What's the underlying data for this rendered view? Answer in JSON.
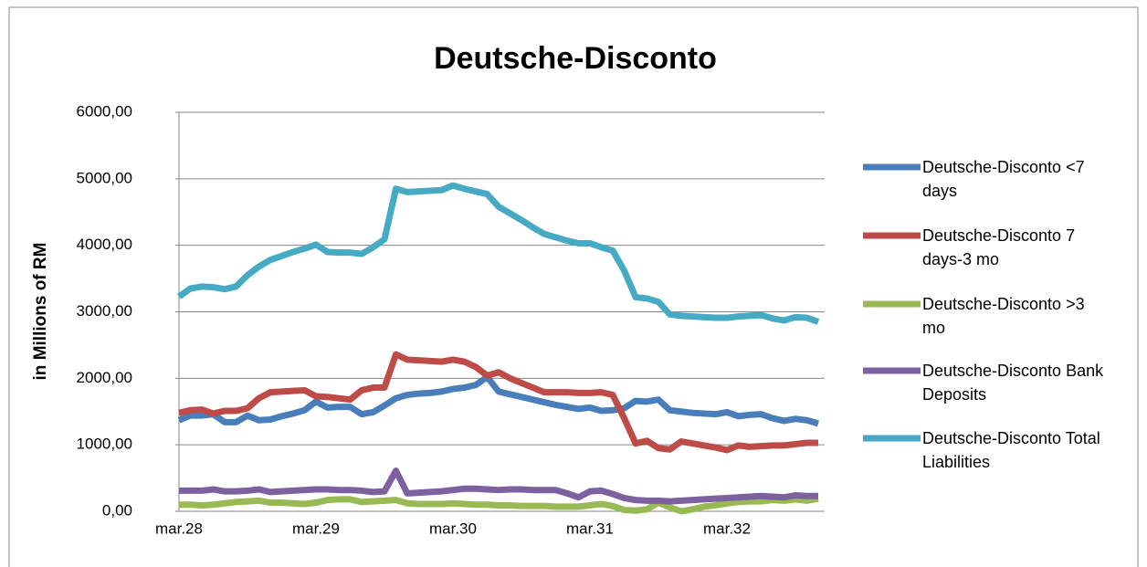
{
  "chart_data": {
    "type": "line",
    "title": "Deutsche-Disconto",
    "y_label": "in Millions of RM",
    "categories": [
      "mar.28",
      null,
      null,
      null,
      null,
      null,
      null,
      null,
      null,
      null,
      null,
      null,
      "mar.29",
      null,
      null,
      null,
      null,
      null,
      null,
      null,
      null,
      null,
      null,
      null,
      "mar.30",
      null,
      null,
      null,
      null,
      null,
      null,
      null,
      null,
      null,
      null,
      null,
      "mar.31",
      null,
      null,
      null,
      null,
      null,
      null,
      null,
      null,
      null,
      null,
      null,
      "mar.32",
      null,
      null,
      null,
      null,
      null,
      null,
      null,
      null
    ],
    "ylim": [
      0,
      6000
    ],
    "yticks": [
      {
        "value": 0,
        "label": "0,00"
      },
      {
        "value": 1000,
        "label": "1000,00"
      },
      {
        "value": 2000,
        "label": "2000,00"
      },
      {
        "value": 3000,
        "label": "3000,00"
      },
      {
        "value": 4000,
        "label": "4000,00"
      },
      {
        "value": 5000,
        "label": "5000,00"
      },
      {
        "value": 6000,
        "label": "6000,00"
      }
    ],
    "grid": true,
    "legend": "right",
    "series": [
      {
        "name": "Deutsche-Disconto <7 days",
        "color": "#4a7ebb",
        "values": [
          1370,
          1440,
          1440,
          1460,
          1340,
          1340,
          1440,
          1370,
          1380,
          1430,
          1470,
          1520,
          1650,
          1560,
          1570,
          1570,
          1460,
          1490,
          1590,
          1700,
          1750,
          1770,
          1780,
          1800,
          1840,
          1860,
          1900,
          2020,
          1800,
          1760,
          1720,
          1680,
          1640,
          1600,
          1570,
          1540,
          1560,
          1510,
          1520,
          1550,
          1660,
          1650,
          1680,
          1520,
          1500,
          1480,
          1470,
          1460,
          1490,
          1430,
          1450,
          1460,
          1400,
          1360,
          1390,
          1370,
          1320
        ]
      },
      {
        "name": "Deutsche-Disconto 7 days-3 mo",
        "color": "#be4b48",
        "values": [
          1480,
          1520,
          1530,
          1470,
          1510,
          1510,
          1550,
          1700,
          1790,
          1800,
          1810,
          1820,
          1730,
          1720,
          1700,
          1680,
          1820,
          1860,
          1860,
          2360,
          2280,
          2270,
          2260,
          2250,
          2280,
          2250,
          2170,
          2040,
          2090,
          2000,
          1930,
          1860,
          1790,
          1790,
          1790,
          1780,
          1780,
          1790,
          1750,
          1400,
          1020,
          1060,
          950,
          930,
          1050,
          1020,
          990,
          960,
          920,
          990,
          970,
          980,
          990,
          990,
          1010,
          1030,
          1030
        ]
      },
      {
        "name": "Deutsche-Disconto >3 mo",
        "color": "#98b954",
        "values": [
          100,
          100,
          90,
          100,
          120,
          140,
          150,
          160,
          130,
          130,
          120,
          110,
          130,
          170,
          180,
          180,
          140,
          150,
          160,
          170,
          120,
          110,
          110,
          110,
          120,
          110,
          100,
          100,
          90,
          90,
          80,
          80,
          80,
          70,
          70,
          70,
          90,
          110,
          80,
          20,
          10,
          30,
          130,
          60,
          0,
          30,
          70,
          90,
          120,
          140,
          150,
          150,
          170,
          160,
          180,
          160,
          190
        ]
      },
      {
        "name": "Deutsche-Disconto Bank Deposits",
        "color": "#7d60a0",
        "values": [
          310,
          310,
          310,
          330,
          300,
          300,
          310,
          330,
          290,
          300,
          310,
          320,
          330,
          330,
          320,
          320,
          310,
          290,
          300,
          610,
          270,
          280,
          290,
          300,
          320,
          340,
          340,
          330,
          320,
          330,
          330,
          320,
          320,
          320,
          270,
          210,
          300,
          310,
          260,
          200,
          170,
          160,
          160,
          150,
          160,
          170,
          180,
          190,
          200,
          210,
          220,
          230,
          220,
          210,
          240,
          230,
          230
        ]
      },
      {
        "name": "Deutsche-Disconto Total Liabilities",
        "color": "#46aac5",
        "values": [
          3230,
          3350,
          3380,
          3370,
          3340,
          3380,
          3550,
          3680,
          3780,
          3840,
          3900,
          3950,
          4010,
          3900,
          3890,
          3890,
          3870,
          3970,
          4090,
          4850,
          4800,
          4810,
          4820,
          4830,
          4900,
          4850,
          4810,
          4770,
          4580,
          4480,
          4380,
          4270,
          4170,
          4120,
          4070,
          4030,
          4030,
          3970,
          3920,
          3620,
          3220,
          3200,
          3150,
          2960,
          2940,
          2930,
          2920,
          2910,
          2910,
          2930,
          2940,
          2950,
          2900,
          2870,
          2920,
          2910,
          2850
        ]
      }
    ]
  }
}
